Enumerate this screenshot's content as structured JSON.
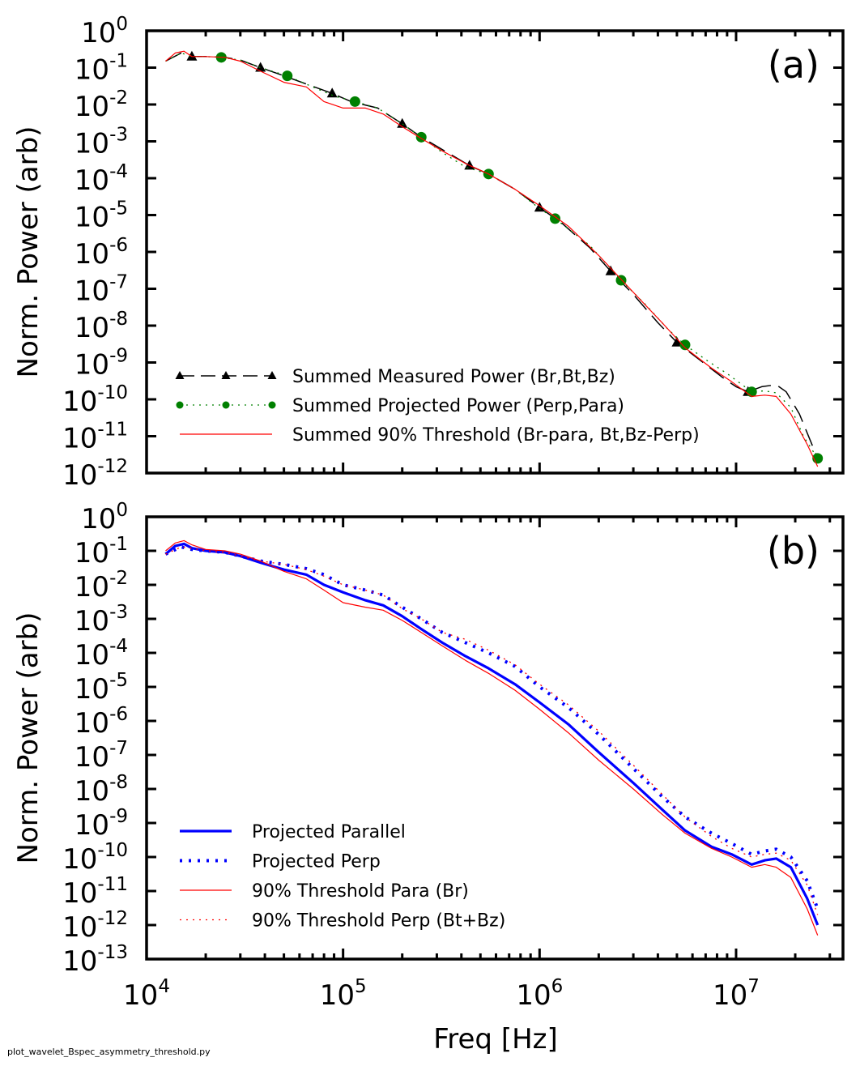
{
  "footer_text": "plot_wavelet_Bspec_asymmetry_threshold.py",
  "x_axis": {
    "label": "Freq [Hz]",
    "scale": "log",
    "lim": [
      10000,
      35000000
    ],
    "major_ticks": [
      {
        "value": 10000,
        "base": "10",
        "exp": "4"
      },
      {
        "value": 100000,
        "base": "10",
        "exp": "5"
      },
      {
        "value": 1000000,
        "base": "10",
        "exp": "6"
      },
      {
        "value": 10000000,
        "base": "10",
        "exp": "7"
      }
    ]
  },
  "chart_data": [
    {
      "type": "line",
      "panel_label": "(a)",
      "ylabel": "Norm. Power (arb)",
      "xscale": "log",
      "yscale": "log",
      "ylim_exp": [
        -12,
        0
      ],
      "y_tick_labels": [
        {
          "base": "10",
          "exp": "0"
        },
        {
          "base": "10",
          "exp": "-1"
        },
        {
          "base": "10",
          "exp": "-2"
        },
        {
          "base": "10",
          "exp": "-3"
        },
        {
          "base": "10",
          "exp": "-4"
        },
        {
          "base": "10",
          "exp": "-5"
        },
        {
          "base": "10",
          "exp": "-6"
        },
        {
          "base": "10",
          "exp": "-7"
        },
        {
          "base": "10",
          "exp": "-8"
        },
        {
          "base": "10",
          "exp": "-9"
        },
        {
          "base": "10",
          "exp": "-10"
        },
        {
          "base": "10",
          "exp": "-11"
        },
        {
          "base": "10",
          "exp": "-12"
        }
      ],
      "legend_position": "lower-left",
      "series": [
        {
          "name": "Summed Measured Power (Br,Bt,Bz)",
          "color": "#000000",
          "style": "dashed",
          "marker": "triangle",
          "x": [
            12500,
            15000,
            17000,
            20000,
            25000,
            30000,
            38000,
            50000,
            65000,
            88000,
            110000,
            150000,
            200000,
            250000,
            320000,
            440000,
            550000,
            750000,
            1000000,
            1300000,
            1800000,
            2300000,
            3000000,
            4000000,
            5000000,
            6500000,
            8500000,
            10000000,
            11500000,
            13500000,
            16000000,
            18000000,
            21000000,
            26000000
          ],
          "y": [
            0.15,
            0.25,
            0.2,
            0.2,
            0.19,
            0.16,
            0.1,
            0.06,
            0.036,
            0.02,
            0.012,
            0.008,
            0.003,
            0.0013,
            0.0006,
            0.00022,
            0.00013,
            5e-05,
            1.6e-05,
            6e-06,
            1.3e-06,
            3e-07,
            7e-08,
            1.2e-08,
            3.5e-09,
            1.2e-09,
            4e-10,
            2.2e-10,
            1.6e-10,
            2.2e-10,
            2.5e-10,
            1.6e-10,
            4e-11,
            2.5e-12
          ],
          "marker_x": [
            17000,
            38000,
            88000,
            200000,
            440000,
            1000000,
            2300000,
            5000000,
            11500000
          ],
          "marker_y": [
            0.2,
            0.1,
            0.02,
            0.003,
            0.00022,
            1.6e-05,
            3e-07,
            3.5e-09,
            1.6e-10
          ]
        },
        {
          "name": "Summed Projected Power (Perp,Para)",
          "color": "#008000",
          "style": "dotted",
          "marker": "circle",
          "x": [
            12500,
            15000,
            17000,
            20000,
            24000,
            30000,
            38000,
            52000,
            70000,
            90000,
            115000,
            150000,
            200000,
            250000,
            320000,
            420000,
            550000,
            750000,
            1000000,
            1200000,
            1800000,
            2600000,
            3500000,
            4500000,
            5500000,
            7000000,
            9000000,
            12000000,
            14000000,
            16000000,
            19000000,
            22000000,
            26000000
          ],
          "y": [
            0.15,
            0.25,
            0.2,
            0.2,
            0.19,
            0.16,
            0.1,
            0.06,
            0.03,
            0.017,
            0.012,
            0.008,
            0.003,
            0.0013,
            0.0005,
            0.0002,
            0.00013,
            5e-05,
            1.5e-05,
            8e-06,
            1.5e-06,
            1.7e-07,
            3.5e-08,
            8e-09,
            3e-09,
            1.2e-09,
            5e-10,
            1.6e-10,
            1.7e-10,
            1.5e-10,
            6e-11,
            1e-11,
            2.5e-12
          ],
          "marker_x": [
            24000,
            52000,
            115000,
            250000,
            550000,
            1200000,
            2600000,
            5500000,
            12000000,
            26000000
          ],
          "marker_y": [
            0.19,
            0.06,
            0.012,
            0.0013,
            0.00013,
            8e-06,
            1.7e-07,
            3e-09,
            1.6e-10,
            2.5e-12
          ]
        },
        {
          "name": "Summed 90% Threshold (Br-para, Bt,Bz-Perp)",
          "color": "#ff0000",
          "style": "solid",
          "marker": "none",
          "x": [
            12500,
            14000,
            15500,
            17000,
            20000,
            25000,
            30000,
            38000,
            50000,
            65000,
            80000,
            100000,
            130000,
            160000,
            200000,
            250000,
            320000,
            420000,
            550000,
            750000,
            1000000,
            1400000,
            2000000,
            3000000,
            4200000,
            5500000,
            7500000,
            9500000,
            12000000,
            14000000,
            16000000,
            19000000,
            23000000,
            26000000
          ],
          "y": [
            0.15,
            0.25,
            0.28,
            0.2,
            0.2,
            0.19,
            0.15,
            0.08,
            0.04,
            0.03,
            0.012,
            0.008,
            0.008,
            0.0055,
            0.0025,
            0.0012,
            0.00055,
            0.00025,
            0.00013,
            5e-05,
            1.8e-05,
            5e-06,
            8e-07,
            8e-08,
            1.2e-08,
            2.5e-09,
            7e-10,
            3e-10,
            1.2e-10,
            1.3e-10,
            1.2e-10,
            4e-11,
            6e-12,
            1.5e-12
          ]
        }
      ]
    },
    {
      "type": "line",
      "panel_label": "(b)",
      "ylabel": "Norm. Power (arb)",
      "xscale": "log",
      "yscale": "log",
      "ylim_exp": [
        -13,
        0
      ],
      "y_tick_labels": [
        {
          "base": "10",
          "exp": "0"
        },
        {
          "base": "10",
          "exp": "-1"
        },
        {
          "base": "10",
          "exp": "-2"
        },
        {
          "base": "10",
          "exp": "-3"
        },
        {
          "base": "10",
          "exp": "-4"
        },
        {
          "base": "10",
          "exp": "-5"
        },
        {
          "base": "10",
          "exp": "-6"
        },
        {
          "base": "10",
          "exp": "-7"
        },
        {
          "base": "10",
          "exp": "-8"
        },
        {
          "base": "10",
          "exp": "-9"
        },
        {
          "base": "10",
          "exp": "-10"
        },
        {
          "base": "10",
          "exp": "-11"
        },
        {
          "base": "10",
          "exp": "-12"
        },
        {
          "base": "10",
          "exp": "-13"
        }
      ],
      "legend_position": "lower-left",
      "series": [
        {
          "name": "Projected Parallel",
          "color": "#0000ff",
          "style": "solid-thick",
          "marker": "none",
          "x": [
            12500,
            14000,
            15500,
            17000,
            20000,
            25000,
            30000,
            38000,
            50000,
            65000,
            80000,
            100000,
            130000,
            160000,
            200000,
            250000,
            320000,
            420000,
            550000,
            750000,
            1000000,
            1400000,
            2000000,
            3000000,
            4200000,
            5500000,
            7500000,
            9500000,
            12000000,
            14000000,
            16000000,
            19000000,
            23000000,
            26000000
          ],
          "y": [
            0.08,
            0.14,
            0.16,
            0.12,
            0.1,
            0.09,
            0.07,
            0.045,
            0.028,
            0.02,
            0.01,
            0.006,
            0.0035,
            0.0025,
            0.0012,
            0.0005,
            0.0002,
            8e-05,
            3.5e-05,
            1.2e-05,
            3.5e-06,
            8e-07,
            1.2e-07,
            1.5e-08,
            2.5e-09,
            6e-10,
            2e-10,
            1.2e-10,
            6e-11,
            8e-11,
            9e-11,
            5e-11,
            6e-12,
            1e-12
          ]
        },
        {
          "name": "Projected Perp",
          "color": "#0000ff",
          "style": "dotted-thick",
          "marker": "none",
          "x": [
            12500,
            15000,
            17000,
            20000,
            25000,
            30000,
            38000,
            50000,
            65000,
            80000,
            100000,
            130000,
            160000,
            200000,
            250000,
            320000,
            420000,
            550000,
            750000,
            1000000,
            1400000,
            2000000,
            3000000,
            4200000,
            5500000,
            7500000,
            9500000,
            12000000,
            14000000,
            16000000,
            19000000,
            23000000,
            26000000
          ],
          "y": [
            0.08,
            0.13,
            0.11,
            0.1,
            0.09,
            0.07,
            0.05,
            0.04,
            0.03,
            0.02,
            0.01,
            0.007,
            0.005,
            0.0022,
            0.001,
            0.0004,
            0.0002,
            0.0001,
            4e-05,
            1e-05,
            2.5e-06,
            4e-07,
            4e-08,
            6e-09,
            1.5e-09,
            5e-10,
            2.5e-10,
            1.2e-10,
            1.5e-10,
            1.7e-10,
            1e-10,
            2e-11,
            3e-12
          ]
        },
        {
          "name": "90% Threshold Para (Br)",
          "color": "#ff0000",
          "style": "solid",
          "marker": "none",
          "x": [
            12500,
            14000,
            15500,
            17000,
            20000,
            25000,
            30000,
            38000,
            50000,
            65000,
            80000,
            100000,
            130000,
            160000,
            200000,
            250000,
            320000,
            420000,
            550000,
            750000,
            1000000,
            1400000,
            2000000,
            3000000,
            4200000,
            5500000,
            7500000,
            9500000,
            12000000,
            14000000,
            16000000,
            19000000,
            23000000,
            26000000
          ],
          "y": [
            0.1,
            0.17,
            0.2,
            0.15,
            0.11,
            0.1,
            0.08,
            0.05,
            0.025,
            0.015,
            0.007,
            0.003,
            0.0022,
            0.0018,
            0.0009,
            0.0004,
            0.00016,
            6e-05,
            2.5e-05,
            8e-06,
            2.2e-06,
            4.5e-07,
            7e-08,
            1e-08,
            1.8e-09,
            5e-10,
            1.8e-10,
            1e-10,
            5e-11,
            6e-11,
            5e-11,
            2.5e-11,
            3e-12,
            5e-13
          ]
        },
        {
          "name": "90% Threshold Perp (Bt+Bz)",
          "color": "#ff0000",
          "style": "dotted",
          "marker": "none",
          "x": [
            12500,
            15000,
            17000,
            20000,
            25000,
            30000,
            38000,
            50000,
            65000,
            80000,
            100000,
            130000,
            160000,
            200000,
            250000,
            320000,
            420000,
            550000,
            750000,
            1000000,
            1400000,
            2000000,
            3000000,
            4200000,
            5500000,
            7500000,
            9500000,
            12000000,
            14000000,
            16000000,
            19000000,
            23000000,
            26000000
          ],
          "y": [
            0.08,
            0.13,
            0.12,
            0.1,
            0.09,
            0.07,
            0.05,
            0.04,
            0.028,
            0.018,
            0.01,
            0.007,
            0.005,
            0.002,
            0.001,
            0.0004,
            0.00025,
            0.00012,
            4.5e-05,
            1.2e-05,
            3e-06,
            5e-07,
            5e-08,
            7e-09,
            1.5e-09,
            4e-10,
            1.8e-10,
            1e-10,
            1.2e-10,
            1.3e-10,
            8e-11,
            1.5e-11,
            2e-12
          ]
        }
      ]
    }
  ]
}
